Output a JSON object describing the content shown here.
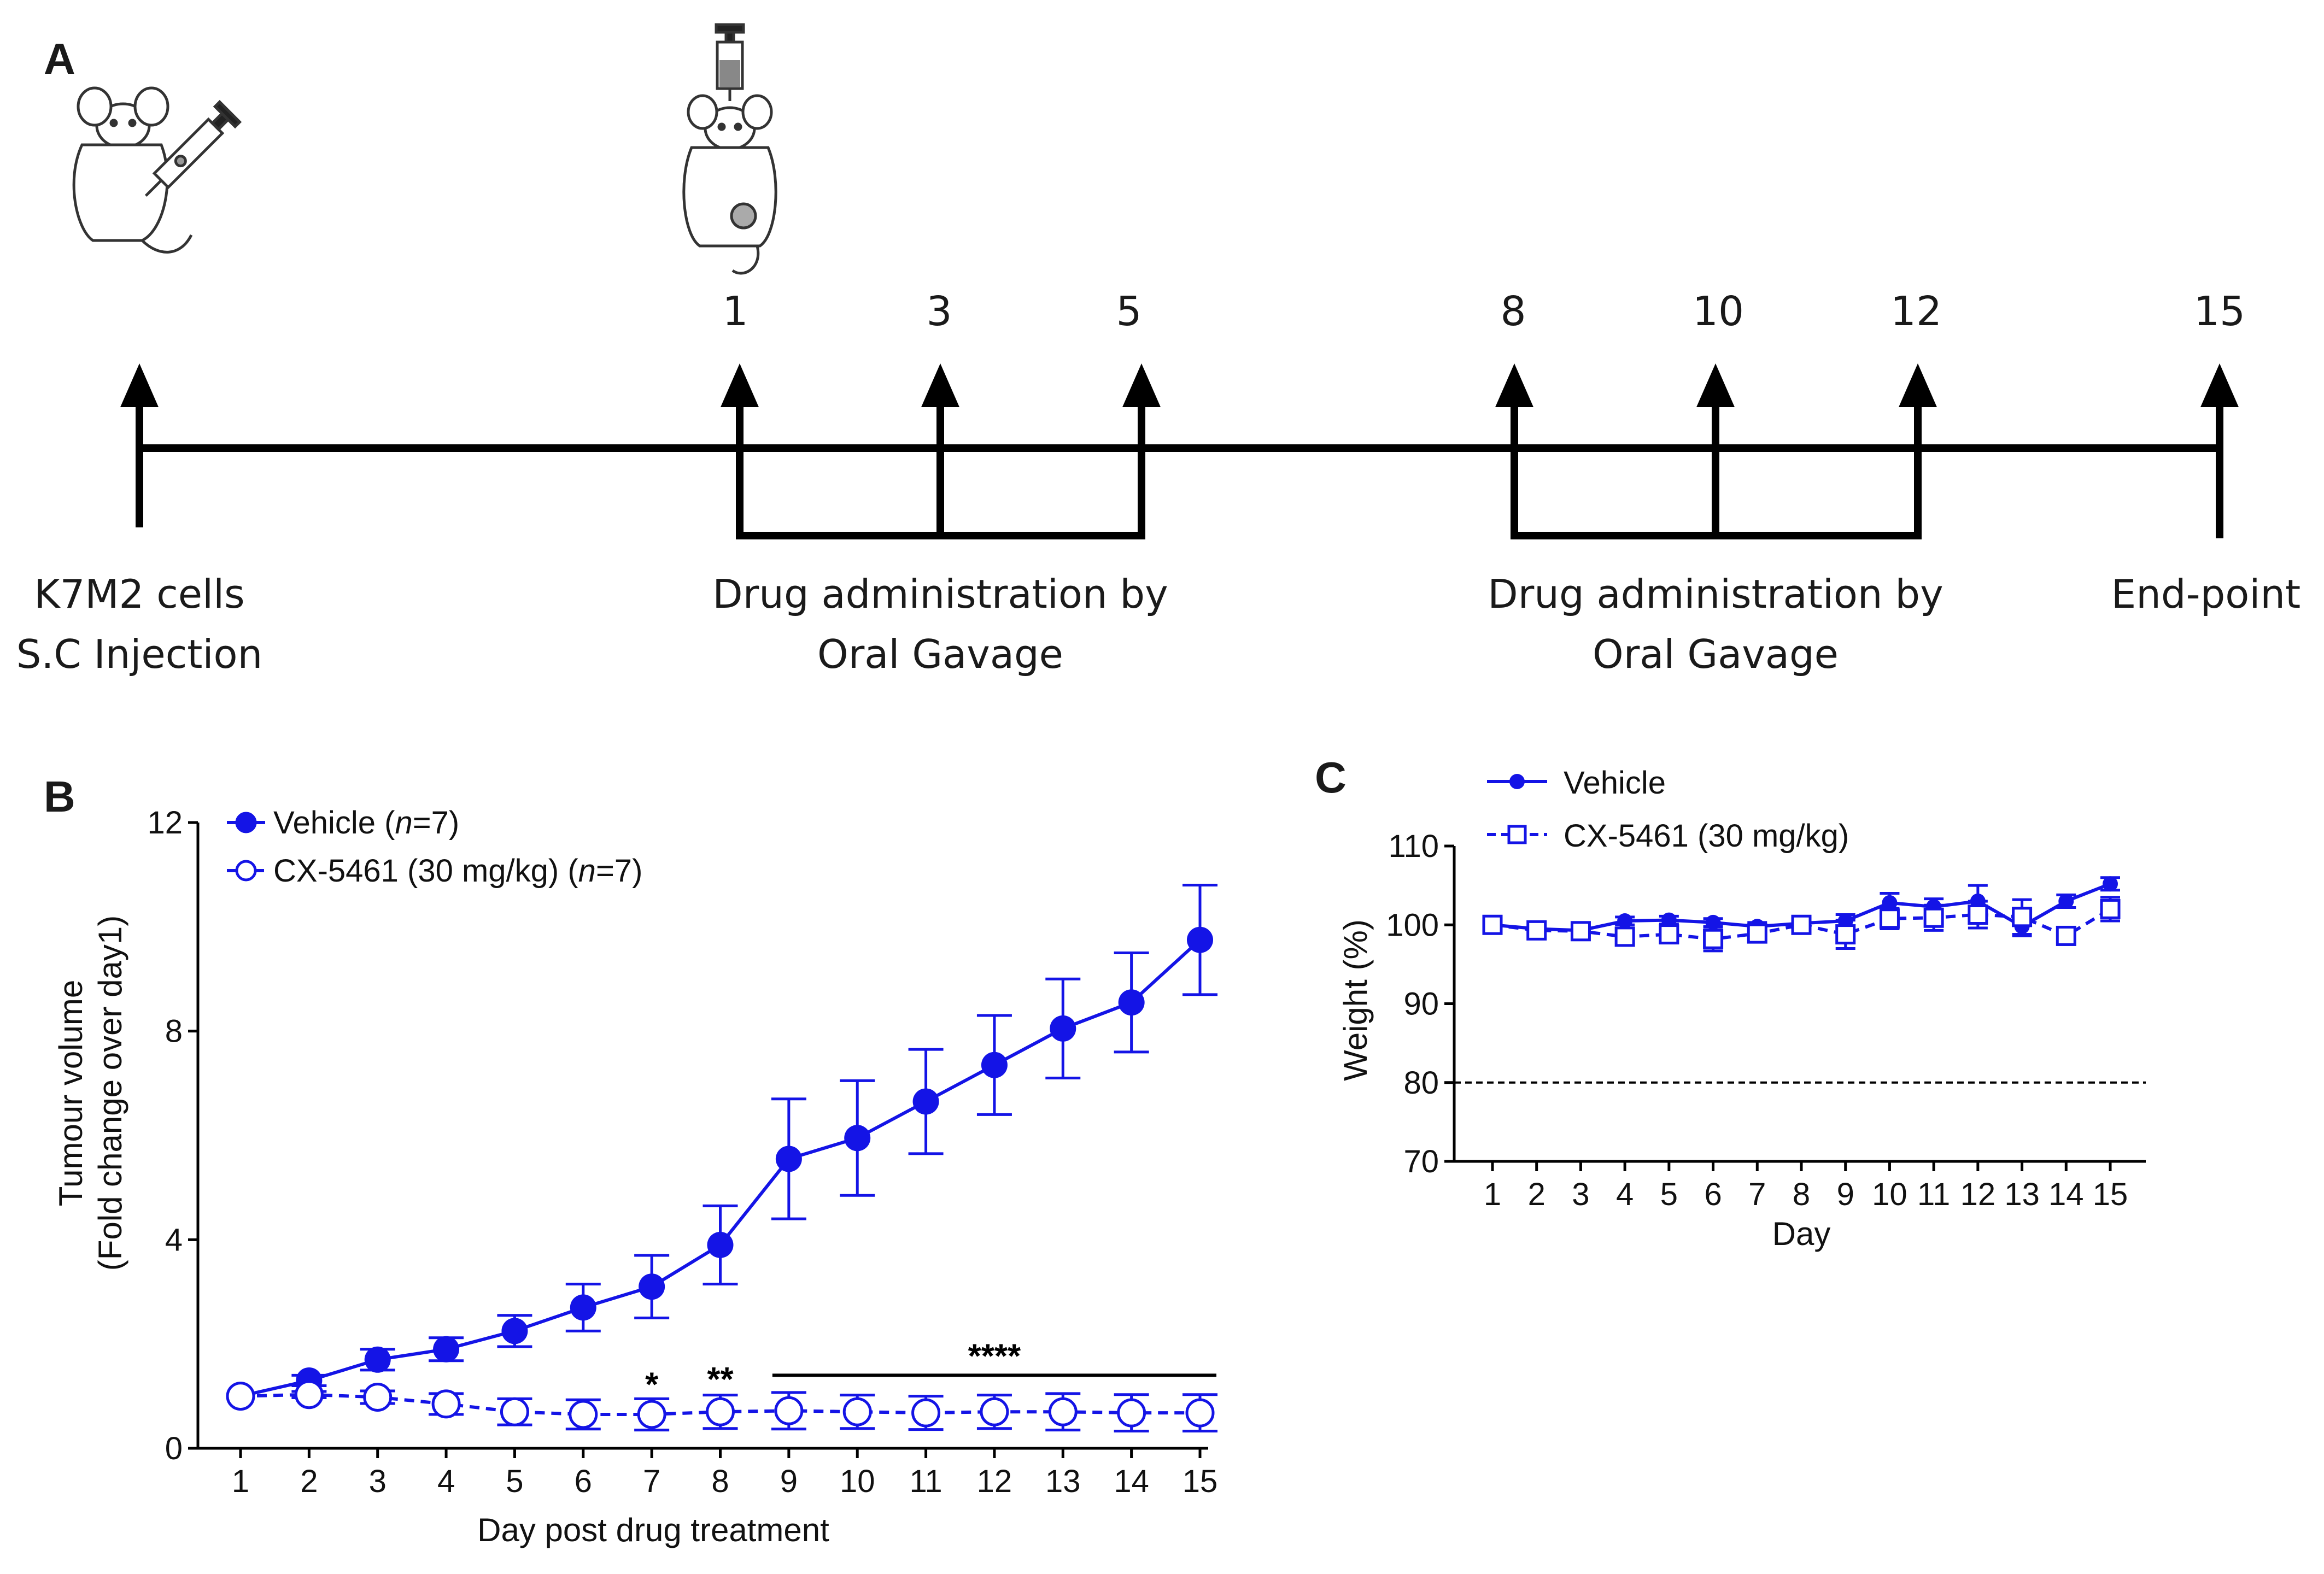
{
  "panel_labels": {
    "a": "A",
    "b": "B",
    "c": "C"
  },
  "timeline": {
    "days": [
      "1",
      "3",
      "5",
      "8",
      "10",
      "12",
      "15"
    ],
    "start_label_line1": "K7M2 cells",
    "start_label_line2": "S.C Injection",
    "block1_line1": "Drug administration by",
    "block1_line2": "Oral Gavage",
    "block2_line1": "Drug administration by",
    "block2_line2": "Oral Gavage",
    "end_label": "End-point"
  },
  "icons": {
    "mouse_injection": "mouse-with-syringe-icon",
    "mouse_tumour": "mouse-with-tumour-icon",
    "syringe": "syringe-icon"
  },
  "colors": {
    "series": "#1414e6",
    "axis": "#000000",
    "text": "#111111"
  },
  "chart_data": [
    {
      "id": "B",
      "type": "line",
      "xlabel": "Day post drug treatment",
      "ylabel_line1": "Tumour volume",
      "ylabel_line2": "(Fold change over day1)",
      "ylim": [
        0,
        12
      ],
      "yticks": [
        "0",
        "4",
        "8",
        "12"
      ],
      "x": [
        "1",
        "2",
        "3",
        "4",
        "5",
        "6",
        "7",
        "8",
        "9",
        "10",
        "11",
        "12",
        "13",
        "14",
        "15"
      ],
      "series": [
        {
          "name": "Vehicle",
          "n_label": "n",
          "n_value": "=7",
          "marker": "filled-circle",
          "line": "solid",
          "values": [
            1.0,
            1.3,
            1.7,
            1.9,
            2.25,
            2.7,
            3.1,
            3.9,
            5.55,
            5.95,
            6.65,
            7.35,
            8.05,
            8.55,
            9.75
          ],
          "errors": [
            0.0,
            0.1,
            0.2,
            0.22,
            0.3,
            0.45,
            0.6,
            0.75,
            1.15,
            1.1,
            1.0,
            0.95,
            0.95,
            0.95,
            1.05
          ]
        },
        {
          "name": "CX-5461 (30 mg/kg)",
          "n_label": "n",
          "n_value": "=7",
          "marker": "open-circle",
          "line": "dashed",
          "values": [
            1.0,
            1.03,
            0.98,
            0.85,
            0.7,
            0.65,
            0.65,
            0.7,
            0.72,
            0.7,
            0.68,
            0.7,
            0.7,
            0.68,
            0.68
          ],
          "errors": [
            0.0,
            0.06,
            0.12,
            0.2,
            0.25,
            0.28,
            0.3,
            0.32,
            0.35,
            0.32,
            0.32,
            0.32,
            0.35,
            0.35,
            0.35
          ]
        }
      ],
      "annotations": [
        {
          "text": "*",
          "x": 7,
          "y": 1.0
        },
        {
          "text": "**",
          "x": 8,
          "y": 1.1
        },
        {
          "text": "****",
          "x_start": 9,
          "x_end": 15,
          "y": 1.4
        }
      ]
    },
    {
      "id": "C",
      "type": "line",
      "xlabel": "Day",
      "ylabel": "Weight (%)",
      "ylim": [
        70,
        110
      ],
      "yticks": [
        "70",
        "80",
        "90",
        "100",
        "110"
      ],
      "reference_line": 80,
      "x": [
        "1",
        "2",
        "3",
        "4",
        "5",
        "6",
        "7",
        "8",
        "9",
        "10",
        "11",
        "12",
        "13",
        "14",
        "15"
      ],
      "series": [
        {
          "name": "Vehicle",
          "marker": "filled-circle",
          "line": "solid",
          "values": [
            100,
            99.5,
            99.3,
            100.5,
            100.6,
            100.3,
            99.8,
            100.2,
            100.5,
            102.8,
            102.3,
            103.0,
            99.8,
            103.0,
            105.2
          ],
          "errors": [
            0.2,
            0.5,
            0.5,
            0.5,
            0.5,
            0.5,
            0.5,
            0.6,
            0.8,
            1.2,
            1.0,
            2.0,
            1.2,
            0.8,
            0.8
          ]
        },
        {
          "name": "CX-5461 (30 mg/kg)",
          "marker": "open-square",
          "line": "dashed",
          "values": [
            100,
            99.3,
            99.2,
            98.5,
            98.8,
            98.2,
            98.9,
            100.0,
            98.8,
            100.8,
            100.9,
            101.3,
            101.0,
            98.6,
            102.0
          ],
          "errors": [
            0.2,
            0.5,
            0.6,
            1.0,
            1.0,
            1.5,
            0.8,
            0.8,
            1.8,
            1.3,
            1.6,
            1.7,
            2.2,
            0.8,
            1.5
          ]
        }
      ]
    }
  ]
}
